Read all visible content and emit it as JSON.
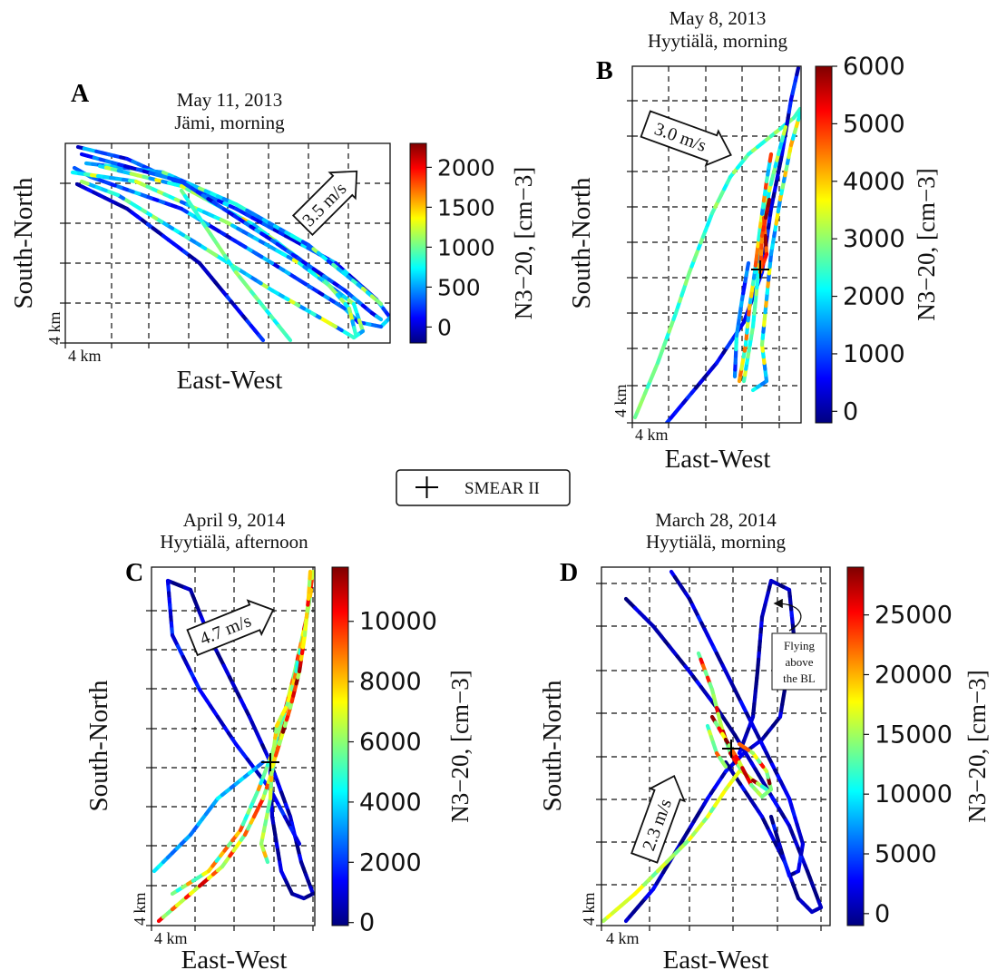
{
  "legend": {
    "label": "SMEAR II"
  },
  "colormap": [
    "#00007f",
    "#0000ff",
    "#007fff",
    "#00ffff",
    "#7fff7f",
    "#ffff00",
    "#ff7f00",
    "#ff0000",
    "#7f0000"
  ],
  "chart_data": [
    {
      "panel": "A",
      "type": "scatter",
      "title": "May 11, 2013",
      "subtitle": "Jämi, morning",
      "xlabel": "East-West",
      "ylabel": "South-North",
      "x_scale_label": "4 km",
      "y_scale_label": "4 km",
      "colorbar": {
        "label": "N3−20, [cm−3]",
        "ticks": [
          "0",
          "500",
          "1000",
          "1500",
          "2000"
        ],
        "range": [
          -200,
          2300
        ]
      },
      "wind": {
        "label": "3.5 m/s",
        "direction": "north-east"
      }
    },
    {
      "panel": "B",
      "type": "scatter",
      "title": "May 8, 2013",
      "subtitle": "Hyytiälä, morning",
      "xlabel": "East-West",
      "ylabel": "South-North",
      "x_scale_label": "4 km",
      "y_scale_label": "4 km",
      "colorbar": {
        "label": "N3−20, [cm−3]",
        "ticks": [
          "0",
          "1000",
          "2000",
          "3000",
          "4000",
          "5000",
          "6000"
        ],
        "range": [
          -200,
          6000
        ]
      },
      "wind": {
        "label": "3.0 m/s",
        "direction": "east-south-east"
      }
    },
    {
      "panel": "C",
      "type": "scatter",
      "title": "April 9, 2014",
      "subtitle": "Hyytiälä, afternoon",
      "xlabel": "East-West",
      "ylabel": "South-North",
      "x_scale_label": "4 km",
      "y_scale_label": "4 km",
      "colorbar": {
        "label": "N3−20, [cm−3]",
        "ticks": [
          "0",
          "2000",
          "4000",
          "6000",
          "8000",
          "10000"
        ],
        "range": [
          -100,
          11800
        ]
      },
      "wind": {
        "label": "4.7 m/s",
        "direction": "west-south-west"
      }
    },
    {
      "panel": "D",
      "type": "scatter",
      "title": "March 28, 2014",
      "subtitle": "Hyytiälä, morning",
      "xlabel": "East-West",
      "ylabel": "South-North",
      "x_scale_label": "4 km",
      "y_scale_label": "4 km",
      "colorbar": {
        "label": "N3−20, [cm−3]",
        "ticks": [
          "0",
          "5000",
          "10000",
          "15000",
          "20000",
          "25000"
        ],
        "range": [
          -1000,
          29000
        ]
      },
      "wind": {
        "label": "2.3 m/s",
        "direction": "south-south-west"
      },
      "annotation": [
        "Flying",
        "above",
        "the BL"
      ]
    }
  ]
}
